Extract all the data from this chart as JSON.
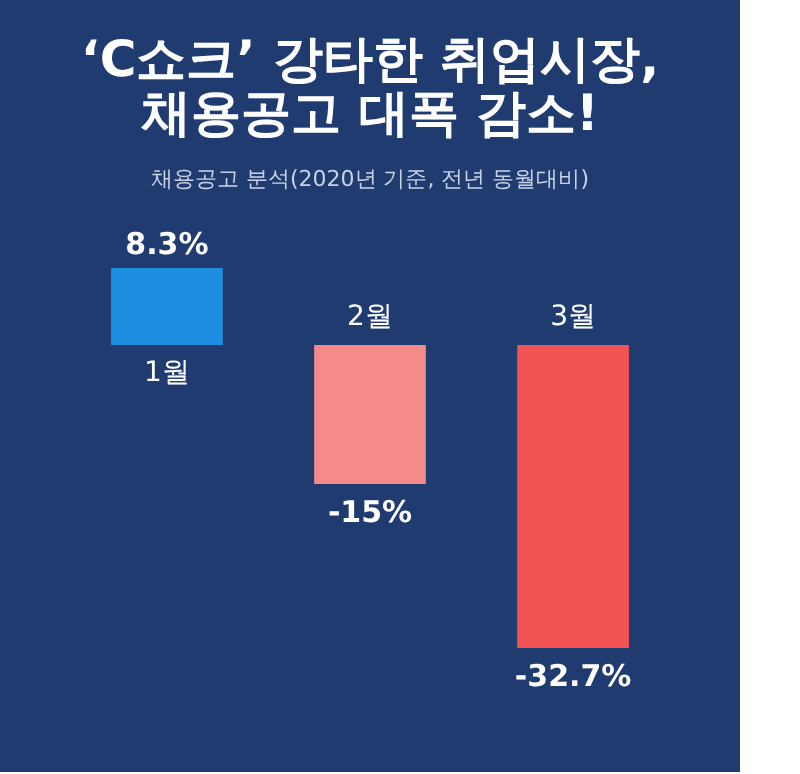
{
  "chart_data": {
    "type": "bar",
    "title": [
      "‘C쇼크’ 강타한 취업시장,",
      "채용공고 대폭 감소!"
    ],
    "subtitle": "채용공고 분석(2020년 기준, 전년 동월대비)",
    "categories": [
      "1월",
      "2월",
      "3월"
    ],
    "values": [
      8.3,
      -15,
      -32.7
    ],
    "colors": [
      "#1e8fe0",
      "#f58a8a",
      "#f25454"
    ],
    "value_labels": [
      "8.3%",
      "-15%",
      "-32.7%"
    ]
  }
}
